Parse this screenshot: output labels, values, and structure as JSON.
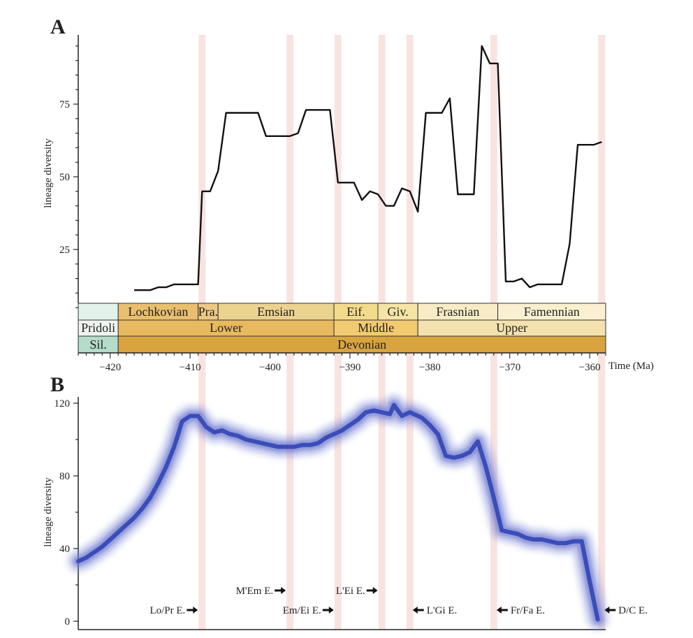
{
  "chart_data": [
    {
      "panel": "A",
      "type": "line",
      "ylabel": "lineage diversity",
      "xlabel": "Time (Ma)",
      "x_ticks": [
        -420,
        -410,
        -400,
        -390,
        -380,
        -370,
        -360
      ],
      "y_ticks": [
        25,
        50,
        75
      ],
      "xlim": [
        -424,
        -358
      ],
      "ylim": [
        0,
        100
      ],
      "grid": false,
      "series": [
        {
          "x": [
            -417,
            -415,
            -414,
            -413,
            -412,
            -411,
            -409,
            -408.5,
            -407.5,
            -406.5,
            -405.5,
            -404.5,
            -401.5,
            -400.5,
            -397.5,
            -396.5,
            -395.5,
            -392.5,
            -391.5,
            -389.5,
            -388.5,
            -387.5,
            -386.5,
            -385.5,
            -384.5,
            -383.5,
            -382.5,
            -381.5,
            -380.5,
            -378.5,
            -377.5,
            -376.5,
            -374.5,
            -373.5,
            -372.5,
            -371.5,
            -370.5,
            -369.5,
            -368.5,
            -367.5,
            -366.5,
            -365.5,
            -363.5,
            -362.5,
            -361.5,
            -359.5,
            -358.5
          ],
          "y": [
            11,
            11,
            12,
            12,
            13,
            13,
            13,
            45,
            45,
            52,
            72,
            72,
            72,
            64,
            64,
            65,
            73,
            73,
            48,
            48,
            42,
            45,
            44,
            40,
            40,
            46,
            45,
            38,
            72,
            72,
            77,
            44,
            44,
            95,
            89,
            89,
            14,
            14,
            15,
            12,
            13,
            13,
            13,
            27,
            61,
            61,
            62
          ]
        }
      ]
    },
    {
      "panel": "B",
      "type": "line",
      "ylabel": "lineage diversity",
      "y_ticks": [
        0,
        40,
        80,
        120
      ],
      "xlim": [
        -424,
        -358
      ],
      "ylim": [
        0,
        120
      ],
      "grid": false,
      "series": [
        {
          "color": "#3a4db8",
          "x": [
            -424,
            -423,
            -422,
            -421,
            -420,
            -419,
            -418,
            -417,
            -416,
            -415,
            -414,
            -413,
            -412,
            -411,
            -410,
            -409,
            -408,
            -407,
            -406,
            -405,
            -404,
            -403,
            -402,
            -401,
            -400,
            -399,
            -398,
            -397,
            -396,
            -395,
            -394,
            -393,
            -392,
            -391,
            -390,
            -389,
            -388,
            -387,
            -386,
            -385,
            -384.5,
            -383.5,
            -382.5,
            -382,
            -381,
            -380,
            -379,
            -378,
            -377,
            -376,
            -375,
            -374,
            -373,
            -372,
            -371,
            -370,
            -369,
            -368,
            -367,
            -366,
            -365,
            -364,
            -363,
            -362,
            -361,
            -360,
            -359
          ],
          "y": [
            33,
            35,
            38,
            41,
            45,
            49,
            53,
            57,
            62,
            68,
            76,
            85,
            96,
            110,
            113,
            113,
            107,
            104,
            105,
            103,
            102,
            100,
            99,
            98,
            97,
            96,
            96,
            96,
            97,
            97,
            98,
            101,
            103,
            105,
            108,
            111,
            115,
            116,
            115,
            114,
            119,
            113,
            115,
            114,
            112,
            108,
            103,
            91,
            90,
            91,
            93,
            99,
            85,
            68,
            50,
            49,
            48,
            46,
            45,
            45,
            44,
            43,
            43,
            44,
            44,
            22,
            1
          ]
        }
      ]
    }
  ],
  "event_bands_ma": [
    -408.5,
    -397.5,
    -391.5,
    -386,
    -382.5,
    -372,
    -358.5
  ],
  "band_color": "#f7d9d7",
  "panel_labels": {
    "a": "A",
    "b": "B"
  },
  "stratigraphy": {
    "stages": [
      {
        "name": "",
        "start": -424,
        "end": -419,
        "color": "#e2f1ea"
      },
      {
        "name": "Lochkovian",
        "start": -419,
        "end": -409,
        "color": "#e9bf6f"
      },
      {
        "name": "Pra.",
        "start": -409,
        "end": -406.5,
        "color": "#ecc983"
      },
      {
        "name": "Emsian",
        "start": -406.5,
        "end": -392,
        "color": "#ecd28f"
      },
      {
        "name": "Eif.",
        "start": -392,
        "end": -386.5,
        "color": "#f3db8b"
      },
      {
        "name": "Giv.",
        "start": -386.5,
        "end": -381.5,
        "color": "#f6e4a4"
      },
      {
        "name": "Frasnian",
        "start": -381.5,
        "end": -371.5,
        "color": "#f8ecc6"
      },
      {
        "name": "Famennian",
        "start": -371.5,
        "end": -358,
        "color": "#faf0d1"
      }
    ],
    "series": [
      {
        "name": "Pridoli",
        "start": -424,
        "end": -419,
        "color": "#eef5ef"
      },
      {
        "name": "Lower",
        "start": -419,
        "end": -392,
        "color": "#e8b95e"
      },
      {
        "name": "Middle",
        "start": -392,
        "end": -381.5,
        "color": "#f2ca6f"
      },
      {
        "name": "Upper",
        "start": -381.5,
        "end": -358,
        "color": "#f3e2ad"
      }
    ],
    "periods": [
      {
        "name": "Sil.",
        "start": -424,
        "end": -419,
        "color": "#b4dcc9"
      },
      {
        "name": "Devonian",
        "start": -419,
        "end": -358,
        "color": "#d9a440"
      }
    ]
  },
  "events": [
    {
      "label": "Lo/Pr E.",
      "dir": "right",
      "x": -408.5,
      "row": 2
    },
    {
      "label": "M'Em E.",
      "dir": "right",
      "x": -397.5,
      "row": 1
    },
    {
      "label": "Em/Ei E.",
      "dir": "right",
      "x": -391.5,
      "row": 2
    },
    {
      "label": "L'Ei E.",
      "dir": "right",
      "x": -386,
      "row": 1
    },
    {
      "label": "L'Gi E.",
      "dir": "left",
      "x": -382.5,
      "row": 2
    },
    {
      "label": "Fr/Fa E.",
      "dir": "left",
      "x": -372,
      "row": 2
    },
    {
      "label": "D/C E.",
      "dir": "left",
      "x": -358.5,
      "row": 2
    }
  ]
}
